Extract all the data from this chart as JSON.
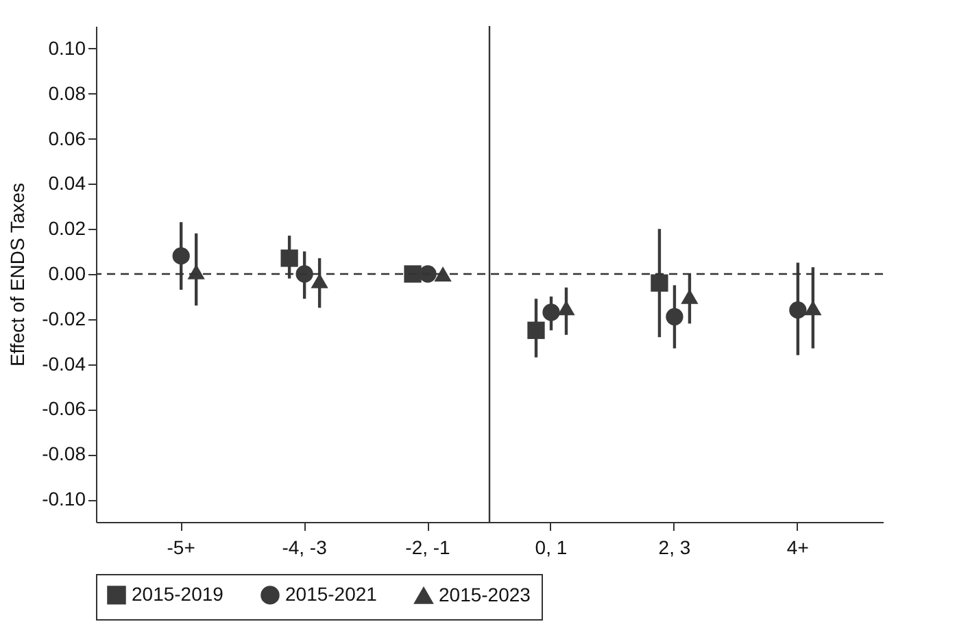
{
  "chart_data": {
    "type": "scatter",
    "ylabel": "Effect of ENDS Taxes",
    "categories": [
      "-5+",
      "-4, -3",
      "-2, -1",
      "0, 1",
      "2, 3",
      "4+"
    ],
    "series": [
      {
        "name": "2015-2019",
        "color": "#3a3a3a",
        "marker": "square",
        "values": [
          null,
          0.007,
          0.0,
          -0.025,
          -0.004,
          null
        ],
        "errors": [
          null,
          [
            -0.002,
            0.017
          ],
          null,
          [
            -0.037,
            -0.011
          ],
          [
            -0.028,
            0.02
          ],
          null
        ]
      },
      {
        "name": "2015-2021",
        "color": "#3a3a3a",
        "marker": "circle",
        "values": [
          0.008,
          0.0,
          0.0,
          -0.017,
          -0.019,
          -0.016
        ],
        "errors": [
          [
            -0.007,
            0.023
          ],
          [
            -0.011,
            0.01
          ],
          null,
          [
            -0.025,
            -0.01
          ],
          [
            -0.033,
            -0.005
          ],
          [
            -0.036,
            0.005
          ]
        ]
      },
      {
        "name": "2015-2023",
        "color": "#3a3a3a",
        "marker": "triangle",
        "values": [
          0.001,
          -0.003,
          0.0,
          -0.015,
          -0.01,
          -0.015
        ],
        "errors": [
          [
            -0.014,
            0.018
          ],
          [
            -0.015,
            0.007
          ],
          null,
          [
            -0.027,
            -0.006
          ],
          [
            -0.022,
            0.0
          ],
          [
            -0.033,
            0.003
          ]
        ]
      }
    ],
    "ylim": [
      -0.11,
      0.11
    ],
    "yticks": [
      {
        "value": -0.1,
        "label": "-0.10"
      },
      {
        "value": -0.08,
        "label": "-0.08"
      },
      {
        "value": -0.06,
        "label": "-0.06"
      },
      {
        "value": -0.04,
        "label": "-0.04"
      },
      {
        "value": -0.02,
        "label": "-0.02"
      },
      {
        "value": 0,
        "label": "0.00"
      },
      {
        "value": 0.02,
        "label": "0.02"
      },
      {
        "value": 0.04,
        "label": "0.04"
      },
      {
        "value": 0.06,
        "label": "0.06"
      },
      {
        "value": 0.08,
        "label": "0.08"
      },
      {
        "value": 0.1,
        "label": "0.10"
      }
    ],
    "ref_lines": [
      {
        "axis": "y",
        "value": 0,
        "line_style": "dashed",
        "color": "#333333"
      },
      {
        "axis": "x",
        "value": "0, 1",
        "line_style": "solid",
        "color": "#333333"
      }
    ],
    "grid": false,
    "legend": "bottom"
  }
}
